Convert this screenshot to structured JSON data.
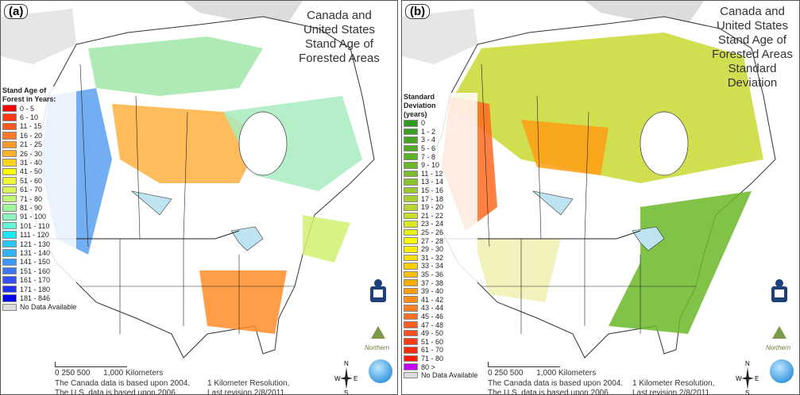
{
  "panels": [
    {
      "label": "(a)",
      "title_lines": [
        "Canada and",
        "United States",
        "Stand Age of",
        "Forested Areas"
      ],
      "legend": {
        "heading_lines": [
          "Stand Age of",
          "Forest in Years:"
        ],
        "items": [
          {
            "label": "0 - 5",
            "color": "#ff0000"
          },
          {
            "label": "6 - 10",
            "color": "#ff3a14"
          },
          {
            "label": "11 - 15",
            "color": "#ff5a1e"
          },
          {
            "label": "16 - 20",
            "color": "#ff7a28"
          },
          {
            "label": "21 - 25",
            "color": "#ff9a28"
          },
          {
            "label": "26 - 30",
            "color": "#ffb428"
          },
          {
            "label": "31 - 40",
            "color": "#ffd21e"
          },
          {
            "label": "41 - 50",
            "color": "#ffff00"
          },
          {
            "label": "51 - 60",
            "color": "#eef53c"
          },
          {
            "label": "61 - 70",
            "color": "#d8f55a"
          },
          {
            "label": "71 - 80",
            "color": "#c0f57a"
          },
          {
            "label": "81 - 90",
            "color": "#a0f59a"
          },
          {
            "label": "91 - 100",
            "color": "#8cf5be"
          },
          {
            "label": "101 - 110",
            "color": "#64f5d8"
          },
          {
            "label": "111 - 120",
            "color": "#1ee6f5"
          },
          {
            "label": "121 - 130",
            "color": "#28c8f5"
          },
          {
            "label": "131 - 140",
            "color": "#32b4f5"
          },
          {
            "label": "141 - 150",
            "color": "#3c96f5"
          },
          {
            "label": "151 - 160",
            "color": "#3c78f5"
          },
          {
            "label": "161 - 170",
            "color": "#3250f5"
          },
          {
            "label": "171 - 180",
            "color": "#1e32f5"
          },
          {
            "label": "181 - 846",
            "color": "#0000f0"
          },
          {
            "label": "No Data Available",
            "color": "#dcdcdc"
          }
        ]
      }
    },
    {
      "label": "(b)",
      "title_lines": [
        "Canada and",
        "United States",
        "Stand Age of",
        "Forested Areas",
        "Standard",
        "Deviation"
      ],
      "legend": {
        "heading_lines": [
          "Standard",
          "Deviation",
          "(years)"
        ],
        "items": [
          {
            "label": "0",
            "color": "#2e9a1e"
          },
          {
            "label": "1 - 2",
            "color": "#3aa020"
          },
          {
            "label": "3 - 4",
            "color": "#46a622"
          },
          {
            "label": "5 - 6",
            "color": "#52ac24"
          },
          {
            "label": "7 - 8",
            "color": "#5eb226"
          },
          {
            "label": "9 - 10",
            "color": "#6ab828"
          },
          {
            "label": "11 - 12",
            "color": "#7abe2a"
          },
          {
            "label": "13 - 14",
            "color": "#8ac42c"
          },
          {
            "label": "15 - 16",
            "color": "#9aca2e"
          },
          {
            "label": "17 - 18",
            "color": "#aad030"
          },
          {
            "label": "19 - 20",
            "color": "#bad632"
          },
          {
            "label": "21 - 22",
            "color": "#cade28"
          },
          {
            "label": "23 - 24",
            "color": "#dae81e"
          },
          {
            "label": "25 - 26",
            "color": "#eaf014"
          },
          {
            "label": "27 - 28",
            "color": "#fafa00"
          },
          {
            "label": "29 - 30",
            "color": "#ffee00"
          },
          {
            "label": "31 - 32",
            "color": "#ffde00"
          },
          {
            "label": "33 - 34",
            "color": "#ffce00"
          },
          {
            "label": "35 - 36",
            "color": "#ffbe00"
          },
          {
            "label": "37 - 38",
            "color": "#ffae00"
          },
          {
            "label": "39 - 40",
            "color": "#ff9e0a"
          },
          {
            "label": "41 - 42",
            "color": "#ff8e14"
          },
          {
            "label": "43 - 44",
            "color": "#ff7e1e"
          },
          {
            "label": "45 - 46",
            "color": "#ff6e1e"
          },
          {
            "label": "47 - 48",
            "color": "#ff5e1e"
          },
          {
            "label": "49 - 50",
            "color": "#ff4e1e"
          },
          {
            "label": "51 - 60",
            "color": "#ff3a14"
          },
          {
            "label": "61 - 70",
            "color": "#ff2a0a"
          },
          {
            "label": "71 - 80",
            "color": "#ff1a00"
          },
          {
            "label": "80 >",
            "color": "#c800ff"
          },
          {
            "label": "No Data Available",
            "color": "#dcdcdc"
          }
        ]
      }
    }
  ],
  "footer": {
    "scale_ticks": "0   250 500",
    "scale_unit": "1,000 Kilometers",
    "canada_note": "The Canada data is based upon 2004.",
    "us_note": "The U.S. data is based upon 2006.",
    "resolution": "1 Kilometer Resolution,",
    "revision": "Last revision 2/8/2011",
    "compass": {
      "n": "N",
      "s": "S",
      "e": "E",
      "w": "W"
    },
    "logo_text": "Northern"
  }
}
